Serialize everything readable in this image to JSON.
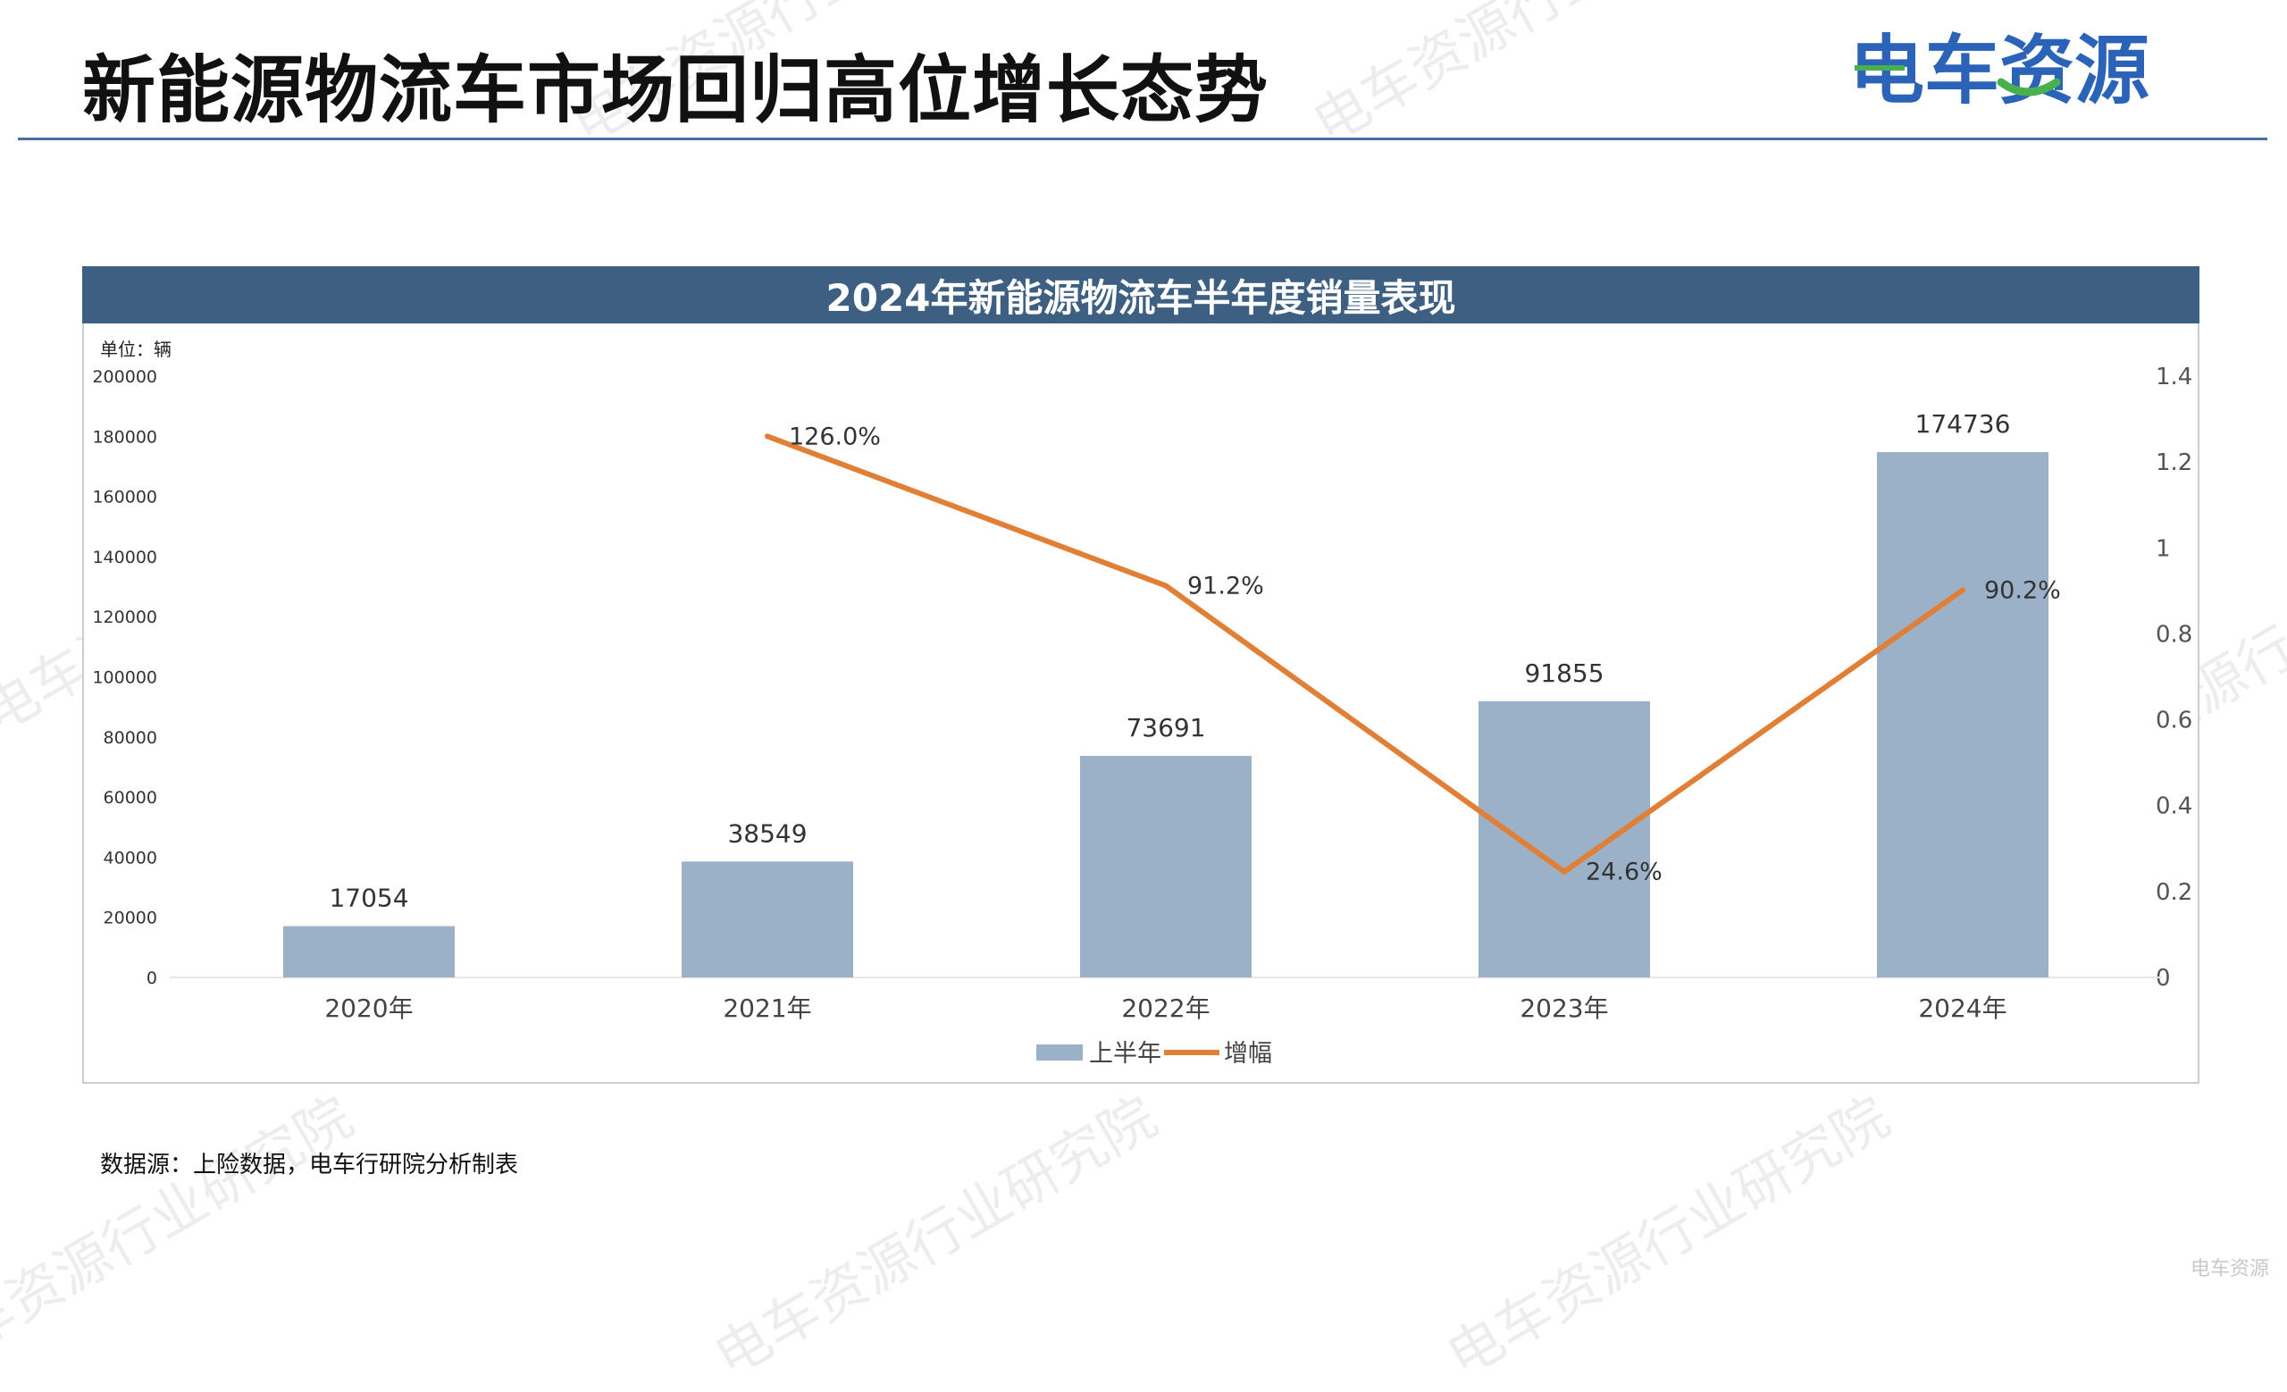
{
  "header": {
    "title": "新能源物流车市场回归高位增长态势",
    "logo_text": "电车资源"
  },
  "watermark": {
    "text": "电车资源行业研究院"
  },
  "source_note": "数据源：上险数据，电车行研院分析制表",
  "corner_mark": "电车资源",
  "colors": {
    "bar": "#9bb1c8",
    "line": "#e07f35",
    "banner": "#3d5f82",
    "title": "#111111",
    "logo_blue": "#2b63b8",
    "logo_green": "#49b04f"
  },
  "chart_data": {
    "type": "bar",
    "title": "2024年新能源物流车半年度销量表现",
    "unit_label": "单位：辆",
    "categories": [
      "2020年",
      "2021年",
      "2022年",
      "2023年",
      "2024年"
    ],
    "series": [
      {
        "name": "上半年",
        "type": "bar",
        "axis": "left",
        "values": [
          17054,
          38549,
          73691,
          91855,
          174736
        ],
        "labels": [
          "17054",
          "38549",
          "73691",
          "91855",
          "174736"
        ]
      },
      {
        "name": "增幅",
        "type": "line",
        "axis": "right",
        "values": [
          null,
          1.26,
          0.912,
          0.246,
          0.902
        ],
        "labels": [
          "",
          "126.0%",
          "91.2%",
          "24.6%",
          "90.2%"
        ]
      }
    ],
    "y_left": {
      "min": 0,
      "max": 200000,
      "ticks": [
        "0",
        "20000",
        "40000",
        "60000",
        "80000",
        "100000",
        "120000",
        "140000",
        "160000",
        "180000",
        "200000"
      ]
    },
    "y_right": {
      "min": 0,
      "max": 1.4,
      "ticks": [
        "0",
        "0.2",
        "0.4",
        "0.6",
        "0.8",
        "1",
        "1.2",
        "1.4"
      ]
    },
    "grid": false,
    "legend_position": "bottom"
  }
}
